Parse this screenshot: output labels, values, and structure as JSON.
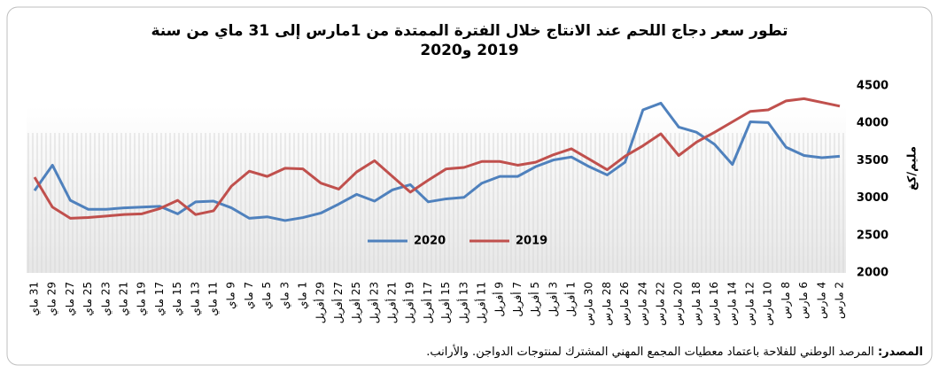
{
  "chart_data": {
    "type": "line",
    "title": "تطور سعر دجاج اللحم عند الانتاج خلال الفترة الممتدة من 1مارس إلى 31 ماي من سنة 2019 و2020",
    "y_label": "مليم/كغ",
    "x_reversed": true,
    "y_axis_side": "right",
    "legend": "center",
    "categories": [
      "2 مارس",
      "4 مارس",
      "6 مارس",
      "8 مارس",
      "10 مارس",
      "12 مارس",
      "14 مارس",
      "16 مارس",
      "18 مارس",
      "20 مارس",
      "22 مارس",
      "24 مارس",
      "26 مارس",
      "28 مارس",
      "30 مارس",
      "1 أفريل",
      "3 أفريل",
      "5 أفريل",
      "7 أفريل",
      "9 أفريل",
      "11 أفريل",
      "13 أفريل",
      "15 أفريل",
      "17 أفريل",
      "19 أفريل",
      "21 أفريل",
      "23 أفريل",
      "25 أفريل",
      "27 أفريل",
      "29 أفريل",
      "1 ماي",
      "3 ماي",
      "5 ماي",
      "7 ماي",
      "9 ماي",
      "11 ماي",
      "13 ماي",
      "15 ماي",
      "17 ماي",
      "19 ماي",
      "21 ماي",
      "23 ماي",
      "25 ماي",
      "27 ماي",
      "29 ماي",
      "31 ماي"
    ],
    "series": [
      {
        "name": "2020",
        "color": "#4f81bd",
        "values": [
          3560,
          3540,
          3570,
          3680,
          4010,
          4020,
          3450,
          3720,
          3880,
          3950,
          4270,
          4180,
          3480,
          3310,
          3420,
          3550,
          3510,
          3420,
          3290,
          3290,
          3200,
          3010,
          2990,
          2950,
          3180,
          3110,
          2960,
          3050,
          2920,
          2800,
          2740,
          2700,
          2750,
          2730,
          2870,
          2960,
          2950,
          2790,
          2890,
          2880,
          2870,
          2850,
          2850,
          2970,
          3440,
          3100
        ]
      },
      {
        "name": "2019",
        "color": "#c0504d",
        "values": [
          4230,
          4280,
          4330,
          4300,
          4180,
          4160,
          4020,
          3880,
          3750,
          3570,
          3860,
          3700,
          3560,
          3380,
          3520,
          3660,
          3580,
          3480,
          3440,
          3490,
          3490,
          3410,
          3390,
          3240,
          3080,
          3290,
          3500,
          3350,
          3120,
          3200,
          3390,
          3400,
          3290,
          3360,
          3160,
          2830,
          2780,
          2970,
          2860,
          2790,
          2780,
          2760,
          2740,
          2730,
          2880,
          3280
        ]
      }
    ],
    "ylim": [
      2000,
      4500
    ],
    "yticks": [
      2000,
      2500,
      3000,
      3500,
      4000,
      4500
    ]
  },
  "source": {
    "label": "المصدر:",
    "text": "المرصد الوطني للفلاحة باعتماد معطيات المجمع المهني المشترك لمنتوجات الدواجن. والأرانب."
  }
}
